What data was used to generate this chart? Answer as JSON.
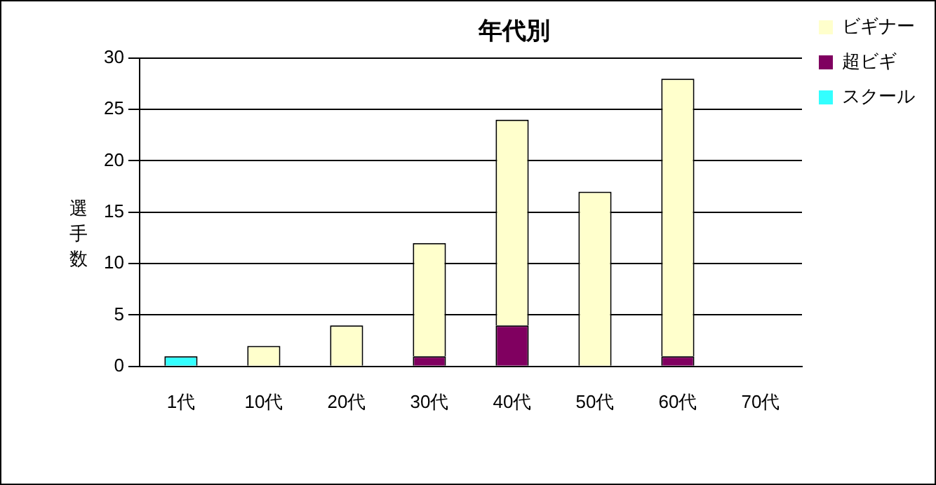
{
  "chart_data": {
    "type": "bar",
    "title": "年代別",
    "ylabel": "選手数",
    "categories": [
      "1代",
      "10代",
      "20代",
      "30代",
      "40代",
      "50代",
      "60代",
      "70代"
    ],
    "stacked": true,
    "series": [
      {
        "name": "スクール",
        "color": "#33ffff",
        "values": [
          1,
          null,
          null,
          null,
          null,
          null,
          null,
          null
        ]
      },
      {
        "name": "超ビギ",
        "color": "#800060",
        "values": [
          null,
          null,
          null,
          1,
          4,
          null,
          1,
          null
        ]
      },
      {
        "name": "ビギナー",
        "color": "#ffffcc",
        "values": [
          null,
          2,
          4,
          11,
          20,
          17,
          27,
          null
        ]
      }
    ],
    "ylim": [
      0,
      30
    ],
    "yticks": [
      0,
      5,
      10,
      15,
      20,
      25,
      30
    ],
    "grid": "y",
    "legend": "top right"
  }
}
